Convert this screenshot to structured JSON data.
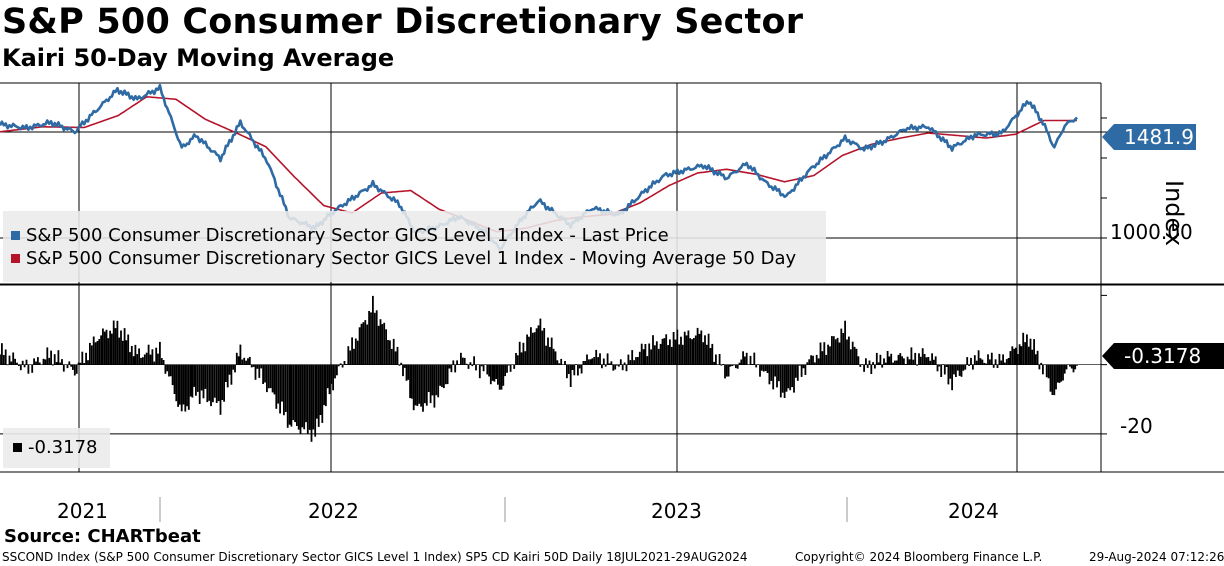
{
  "header": {
    "title": "S&P 500 Consumer Discretionary Sector",
    "subtitle": "Kairi 50-Day Moving Average"
  },
  "colors": {
    "price": "#2e6aa3",
    "moving_average": "#b5152b",
    "kairi": "#000000"
  },
  "chart_data": [
    {
      "type": "line",
      "panel": "price",
      "ylabel": "Index",
      "ylim": [
        820,
        1620
      ],
      "y_ticks": [
        "1000.00"
      ],
      "current_value_label": "1481.91",
      "x_range": [
        "2021-07-18",
        "2024-08-29"
      ],
      "x_tick_labels": [
        "2021",
        "2022",
        "2023",
        "2024"
      ],
      "legend_position": "bottom-left",
      "series": [
        {
          "name": "S&P 500 Consumer Discretionary Sector GICS Level 1 Index - Last Price",
          "color": "#2e6aa3",
          "points": [
            [
              "2021-07-18",
              1455
            ],
            [
              "2021-08-15",
              1440
            ],
            [
              "2021-09-10",
              1462
            ],
            [
              "2021-10-05",
              1425
            ],
            [
              "2021-10-29",
              1515
            ],
            [
              "2021-11-19",
              1592
            ],
            [
              "2021-12-10",
              1555
            ],
            [
              "2022-01-03",
              1600
            ],
            [
              "2022-01-26",
              1360
            ],
            [
              "2022-02-10",
              1410
            ],
            [
              "2022-03-08",
              1318
            ],
            [
              "2022-03-29",
              1462
            ],
            [
              "2022-04-26",
              1310
            ],
            [
              "2022-05-20",
              1080
            ],
            [
              "2022-06-16",
              1040
            ],
            [
              "2022-07-05",
              1105
            ],
            [
              "2022-08-16",
              1215
            ],
            [
              "2022-09-13",
              1135
            ],
            [
              "2022-09-30",
              1020
            ],
            [
              "2022-10-24",
              1045
            ],
            [
              "2022-11-15",
              1085
            ],
            [
              "2022-12-13",
              1025
            ],
            [
              "2022-12-28",
              955
            ],
            [
              "2023-01-20",
              1075
            ],
            [
              "2023-02-07",
              1150
            ],
            [
              "2023-03-13",
              1052
            ],
            [
              "2023-04-05",
              1120
            ],
            [
              "2023-05-03",
              1092
            ],
            [
              "2023-05-31",
              1190
            ],
            [
              "2023-06-20",
              1250
            ],
            [
              "2023-07-31",
              1290
            ],
            [
              "2023-08-25",
              1240
            ],
            [
              "2023-09-15",
              1298
            ],
            [
              "2023-10-05",
              1222
            ],
            [
              "2023-10-27",
              1165
            ],
            [
              "2023-11-20",
              1270
            ],
            [
              "2023-12-28",
              1398
            ],
            [
              "2024-01-17",
              1355
            ],
            [
              "2024-02-09",
              1390
            ],
            [
              "2024-03-01",
              1438
            ],
            [
              "2024-03-25",
              1445
            ],
            [
              "2024-04-19",
              1360
            ],
            [
              "2024-05-13",
              1412
            ],
            [
              "2024-06-10",
              1418
            ],
            [
              "2024-07-09",
              1550
            ],
            [
              "2024-07-24",
              1462
            ],
            [
              "2024-08-05",
              1362
            ],
            [
              "2024-08-16",
              1450
            ],
            [
              "2024-08-29",
              1481.91
            ]
          ]
        },
        {
          "name": "S&P 500 Consumer Discretionary Sector GICS Level 1 Index - Moving Average 50 Day",
          "color": "#b5152b",
          "points": [
            [
              "2021-07-18",
              1425
            ],
            [
              "2021-09-01",
              1445
            ],
            [
              "2021-10-15",
              1442
            ],
            [
              "2021-11-20",
              1490
            ],
            [
              "2021-12-20",
              1565
            ],
            [
              "2022-01-20",
              1555
            ],
            [
              "2022-02-20",
              1475
            ],
            [
              "2022-03-25",
              1420
            ],
            [
              "2022-04-25",
              1365
            ],
            [
              "2022-05-25",
              1245
            ],
            [
              "2022-06-25",
              1130
            ],
            [
              "2022-07-25",
              1100
            ],
            [
              "2022-08-25",
              1180
            ],
            [
              "2022-09-25",
              1190
            ],
            [
              "2022-10-25",
              1115
            ],
            [
              "2022-11-25",
              1070
            ],
            [
              "2022-12-25",
              1025
            ],
            [
              "2023-01-25",
              1040
            ],
            [
              "2023-02-25",
              1070
            ],
            [
              "2023-03-25",
              1085
            ],
            [
              "2023-04-25",
              1095
            ],
            [
              "2023-05-25",
              1140
            ],
            [
              "2023-06-25",
              1210
            ],
            [
              "2023-07-25",
              1260
            ],
            [
              "2023-08-25",
              1275
            ],
            [
              "2023-09-25",
              1255
            ],
            [
              "2023-10-25",
              1225
            ],
            [
              "2023-11-25",
              1250
            ],
            [
              "2023-12-25",
              1330
            ],
            [
              "2024-01-25",
              1375
            ],
            [
              "2024-02-25",
              1400
            ],
            [
              "2024-03-25",
              1420
            ],
            [
              "2024-04-25",
              1410
            ],
            [
              "2024-05-25",
              1400
            ],
            [
              "2024-06-25",
              1415
            ],
            [
              "2024-07-25",
              1470
            ],
            [
              "2024-08-29",
              1470
            ]
          ]
        }
      ]
    },
    {
      "type": "bar",
      "panel": "kairi",
      "ylim": [
        -31,
        23
      ],
      "y_ticks": [
        "-20"
      ],
      "current_value_label": "-0.3178",
      "legend": {
        "label": "-0.3178",
        "position": "bottom-left"
      },
      "series": [
        {
          "name": "Kairi 50-Day",
          "color": "#000000",
          "points": [
            [
              "2021-07-18",
              4
            ],
            [
              "2021-08-15",
              -1
            ],
            [
              "2021-09-10",
              3
            ],
            [
              "2021-10-05",
              -2
            ],
            [
              "2021-10-29",
              8
            ],
            [
              "2021-11-19",
              11
            ],
            [
              "2021-12-10",
              3
            ],
            [
              "2022-01-03",
              4
            ],
            [
              "2022-01-26",
              -14
            ],
            [
              "2022-02-10",
              -8
            ],
            [
              "2022-03-08",
              -12
            ],
            [
              "2022-03-29",
              4
            ],
            [
              "2022-04-26",
              -6
            ],
            [
              "2022-05-20",
              -17
            ],
            [
              "2022-06-16",
              -20
            ],
            [
              "2022-07-05",
              -5
            ],
            [
              "2022-08-16",
              17
            ],
            [
              "2022-09-13",
              2
            ],
            [
              "2022-09-30",
              -13
            ],
            [
              "2022-10-24",
              -9
            ],
            [
              "2022-11-15",
              2
            ],
            [
              "2022-12-13",
              -2
            ],
            [
              "2022-12-28",
              -7
            ],
            [
              "2023-01-20",
              5
            ],
            [
              "2023-02-07",
              12
            ],
            [
              "2023-03-13",
              -4
            ],
            [
              "2023-04-05",
              3
            ],
            [
              "2023-05-03",
              -1
            ],
            [
              "2023-05-31",
              5
            ],
            [
              "2023-06-20",
              7
            ],
            [
              "2023-07-31",
              9
            ],
            [
              "2023-08-25",
              -3
            ],
            [
              "2023-09-15",
              3
            ],
            [
              "2023-10-05",
              -3
            ],
            [
              "2023-10-27",
              -9
            ],
            [
              "2023-11-20",
              1
            ],
            [
              "2023-12-28",
              10
            ],
            [
              "2024-01-17",
              -1
            ],
            [
              "2024-02-09",
              2
            ],
            [
              "2024-03-01",
              2
            ],
            [
              "2024-03-25",
              3
            ],
            [
              "2024-04-19",
              -5
            ],
            [
              "2024-05-13",
              2
            ],
            [
              "2024-06-10",
              1
            ],
            [
              "2024-07-09",
              8
            ],
            [
              "2024-07-24",
              -1
            ],
            [
              "2024-08-05",
              -9
            ],
            [
              "2024-08-16",
              -2
            ],
            [
              "2024-08-29",
              -0.3178
            ]
          ]
        }
      ]
    }
  ],
  "source": "Source: CHARTbeat",
  "footer": {
    "left": "SSCOND Index (S&P 500 Consumer Discretionary Sector GICS Level 1 Index) SP5 CD Kairi 50D  Daily 18JUL2021-29AUG2024",
    "copyright": "Copyright© 2024 Bloomberg Finance L.P.",
    "timestamp": "29-Aug-2024 07:12:26"
  }
}
